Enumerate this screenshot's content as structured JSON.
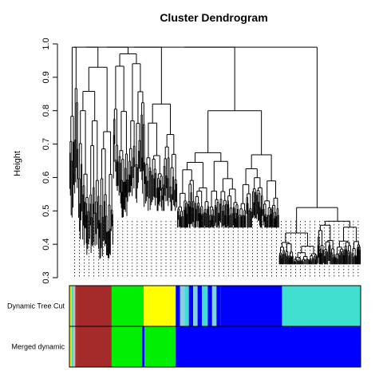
{
  "chart_data": {
    "type": "dendrogram",
    "title": "Cluster Dendrogram",
    "xlabel": "",
    "ylabel": "Height",
    "ylim": [
      0.3,
      1.0
    ],
    "y_ticks": [
      0.3,
      0.4,
      0.5,
      0.6,
      0.7,
      0.8,
      0.9,
      1.0
    ],
    "tree_top_height": 0.99,
    "leaf_min_height": 0.33,
    "leaf_label_height": 0.47,
    "major_merges": [
      {
        "name": "branch-left-slim",
        "from": 0.0,
        "to": 0.03,
        "height": 0.99
      },
      {
        "name": "branch-brown",
        "from": 0.03,
        "to": 0.15,
        "height": 0.93
      },
      {
        "name": "branch-green",
        "from": 0.15,
        "to": 0.26,
        "height": 0.97
      },
      {
        "name": "branch-yellow",
        "from": 0.26,
        "to": 0.37,
        "height": 0.82
      },
      {
        "name": "branch-blue",
        "from": 0.37,
        "to": 0.72,
        "height": 0.8
      },
      {
        "name": "branch-turquoise",
        "from": 0.72,
        "to": 1.0,
        "height": 0.51
      }
    ],
    "color_rows": [
      {
        "label": "Dynamic Tree Cut",
        "segments": [
          {
            "from": 0.0,
            "to": 0.008,
            "color": "#e6e600"
          },
          {
            "from": 0.008,
            "to": 0.014,
            "color": "#40e0d0"
          },
          {
            "from": 0.014,
            "to": 0.02,
            "color": "#bebebe"
          },
          {
            "from": 0.02,
            "to": 0.03,
            "color": "#a52a2a"
          },
          {
            "from": 0.03,
            "to": 0.145,
            "color": "#a52a2a"
          },
          {
            "from": 0.145,
            "to": 0.255,
            "color": "#00ee00"
          },
          {
            "from": 0.255,
            "to": 0.365,
            "color": "#ffff00"
          },
          {
            "from": 0.365,
            "to": 0.38,
            "color": "#0000ff"
          },
          {
            "from": 0.38,
            "to": 0.395,
            "color": "#87ceeb"
          },
          {
            "from": 0.395,
            "to": 0.41,
            "color": "#40e0d0"
          },
          {
            "from": 0.41,
            "to": 0.425,
            "color": "#0000ff"
          },
          {
            "from": 0.425,
            "to": 0.44,
            "color": "#87ceeb"
          },
          {
            "from": 0.44,
            "to": 0.455,
            "color": "#0000ff"
          },
          {
            "from": 0.455,
            "to": 0.475,
            "color": "#40e0d0"
          },
          {
            "from": 0.475,
            "to": 0.49,
            "color": "#0000ff"
          },
          {
            "from": 0.49,
            "to": 0.505,
            "color": "#87ceeb"
          },
          {
            "from": 0.505,
            "to": 0.52,
            "color": "#0000ff"
          },
          {
            "from": 0.52,
            "to": 0.73,
            "color": "#0000ff"
          },
          {
            "from": 0.73,
            "to": 1.0,
            "color": "#40e0d0"
          }
        ]
      },
      {
        "label": "Merged dynamic",
        "segments": [
          {
            "from": 0.0,
            "to": 0.008,
            "color": "#e6e600"
          },
          {
            "from": 0.008,
            "to": 0.014,
            "color": "#40e0d0"
          },
          {
            "from": 0.014,
            "to": 0.02,
            "color": "#bebebe"
          },
          {
            "from": 0.02,
            "to": 0.03,
            "color": "#a52a2a"
          },
          {
            "from": 0.03,
            "to": 0.145,
            "color": "#a52a2a"
          },
          {
            "from": 0.145,
            "to": 0.25,
            "color": "#00ee00"
          },
          {
            "from": 0.25,
            "to": 0.258,
            "color": "#0000ff"
          },
          {
            "from": 0.258,
            "to": 0.365,
            "color": "#00ee00"
          },
          {
            "from": 0.365,
            "to": 1.0,
            "color": "#0000ff"
          }
        ]
      }
    ]
  }
}
